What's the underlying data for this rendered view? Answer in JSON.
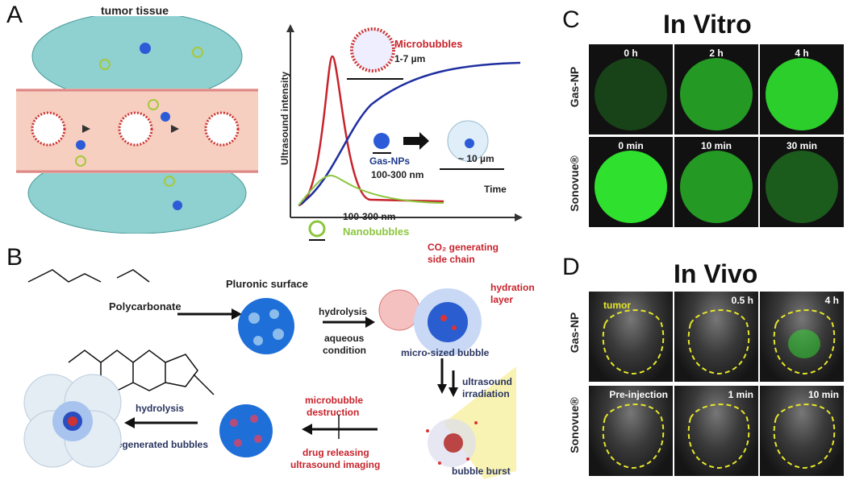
{
  "panel_a": {
    "letter": "A",
    "tumor_label": "tumor tissue",
    "microbubbles": "Microbubbles",
    "micro_size": "1-7 µm",
    "y_axis": "Ultrasound intensity",
    "x_axis": "Time",
    "gas_nps": "Gas-NPs",
    "gas_size": "100-300 nm",
    "aggregate_size": "~ 10 µm",
    "nano_size": "100-300 nm",
    "nanobubbles": "Nanobubbles"
  },
  "panel_b": {
    "letter": "B",
    "polymer": "Polycarbonate",
    "pluronic": "Pluronic surface",
    "hydrolysis1": "hydrolysis",
    "aqueous": "aqueous",
    "condition": "condition",
    "co2_1": "CO₂ generating",
    "co2_2": "side chain",
    "hydration1": "hydration",
    "hydration2": "layer",
    "micro_bubble": "micro-sized bubble",
    "us1": "ultrasound",
    "us2": "irradiation",
    "burst": "bubble burst",
    "destruct1": "microbubble",
    "destruct2": "destruction",
    "drug1": "drug releasing",
    "drug2": "ultrasound imaging",
    "hydrolysis2": "hydrolysis",
    "regen": "regenerated bubbles"
  },
  "panel_c": {
    "letter": "C",
    "title": "In Vitro",
    "rows": [
      {
        "label": "Gas-NP",
        "times": [
          "0 h",
          "2 h",
          "4 h"
        ],
        "fill": [
          0.1,
          0.6,
          0.9
        ]
      },
      {
        "label": "Sonovue®",
        "times": [
          "0 min",
          "10 min",
          "30 min"
        ],
        "fill": [
          1.0,
          0.6,
          0.25
        ]
      }
    ]
  },
  "panel_d": {
    "letter": "D",
    "title": "In Vivo",
    "tumor": "tumor",
    "rows": [
      {
        "label": "Gas-NP",
        "times": [
          "",
          "0.5 h",
          "4 h"
        ]
      },
      {
        "label": "Sonovue®",
        "times": [
          "Pre-injection",
          "1 min",
          "10 min"
        ]
      }
    ]
  },
  "colors": {
    "red": "#c8232c",
    "blue": "#1f2fa0",
    "green": "#8cc63f",
    "signal": "#2fe02f",
    "dash": "#e6e62a"
  }
}
